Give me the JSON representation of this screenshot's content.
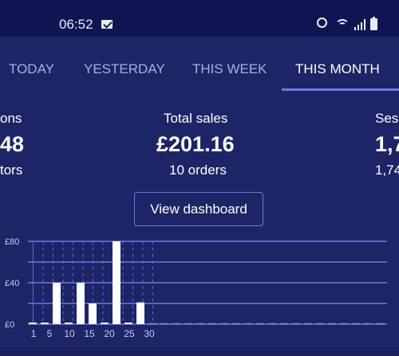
{
  "status_bar": {
    "time": "06:52",
    "icons": [
      "mail-icon",
      "alarm-icon",
      "wifi-icon",
      "signal-icon",
      "battery-icon"
    ]
  },
  "tabs": [
    {
      "label": "TODAY",
      "active": false
    },
    {
      "label": "YESTERDAY",
      "active": false
    },
    {
      "label": "THIS WEEK",
      "active": false
    },
    {
      "label": "THIS MONTH",
      "active": true
    }
  ],
  "stats": {
    "left": {
      "title": "ons",
      "value": "48",
      "sub": "tors"
    },
    "center": {
      "title": "Total sales",
      "value": "£201.16",
      "sub": "10 orders"
    },
    "right": {
      "title": "Ses",
      "value": "1,7",
      "sub": "1,74"
    }
  },
  "view_dashboard_label": "View dashboard",
  "colors": {
    "background": "#1d2566",
    "status_bar": "#0f1550",
    "accent": "#6a79e8",
    "inactive_tab": "#a8aee0",
    "bar": "#ffffff"
  },
  "chart_data": {
    "type": "bar",
    "x": [
      1,
      2,
      3,
      4,
      5,
      6,
      7,
      8,
      9,
      10,
      11,
      12,
      13,
      14,
      15,
      16,
      17,
      18,
      19,
      20,
      21,
      22,
      23,
      24,
      25,
      26,
      27,
      28,
      29,
      30
    ],
    "values": [
      1,
      1,
      40,
      1,
      40,
      20,
      1,
      80,
      1,
      21,
      0,
      0,
      0,
      0,
      0,
      0,
      0,
      0,
      0,
      0,
      0,
      0,
      0,
      0,
      0,
      0,
      0,
      0,
      0,
      0
    ],
    "y_ticks": [
      "£0",
      "£40",
      "£80"
    ],
    "y_tick_values": [
      0,
      40,
      80
    ],
    "x_ticks": [
      1,
      5,
      10,
      15,
      20,
      25,
      30
    ],
    "ylim": [
      0,
      80
    ],
    "grid": true
  }
}
